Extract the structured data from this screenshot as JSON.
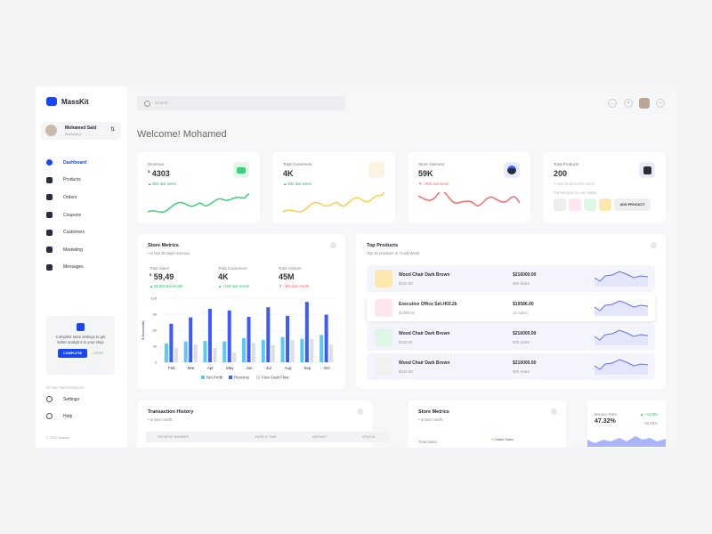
{
  "app": {
    "name": "MassKit"
  },
  "user": {
    "name": "Mohamed Said",
    "role": "Marketing"
  },
  "sidebar": {
    "items": [
      {
        "label": "Dashboard",
        "active": true
      },
      {
        "label": "Products"
      },
      {
        "label": "Orders"
      },
      {
        "label": "Coupons"
      },
      {
        "label": "Customers"
      },
      {
        "label": "Marketing"
      },
      {
        "label": "Messages"
      }
    ],
    "promo": {
      "text": "Complete store settings to get better analytics to your shop",
      "complete": "COMPLETE",
      "later": "LATER"
    },
    "pref_title": "STORE PREFERENCES",
    "pref_items": [
      {
        "label": "Settings"
      },
      {
        "label": "Help"
      }
    ],
    "copyright": "© 2021 Masskit"
  },
  "header": {
    "search_placeholder": "Search...",
    "welcome": "Welcome! Mohamed"
  },
  "kpis": [
    {
      "label": "Revenue",
      "currency": "$",
      "value": "4303",
      "delta": "$32 last week",
      "trend": "up",
      "color": "#3ecf7a",
      "icon": "wallet-icon"
    },
    {
      "label": "Total Customers",
      "value": "4K",
      "delta": "$32 last week",
      "trend": "up",
      "color": "#f7cf4d",
      "icon": "people-icon"
    },
    {
      "label": "Store Visitores",
      "value": "59K",
      "delta": "+900 last week",
      "trend": "down",
      "color": "#f26a6a",
      "icon": "pie-icon"
    },
    {
      "label": "Total Products",
      "value": "200",
      "note": "7 new product this week",
      "top_label": "TOP PRODUCTS LAST WEEK",
      "add_label": "ADD PRODUCT",
      "icon": "bag-icon"
    }
  ],
  "store_metrics": {
    "title": "Store Metrics",
    "subtitle": "in last 30 days revenue.",
    "metrics": [
      {
        "label": "Total Sales",
        "currency": "$",
        "value": "59,49",
        "delta": "$1459 last month",
        "trend": "up"
      },
      {
        "label": "Total Customers",
        "value": "4K",
        "delta": "+109 last month",
        "trend": "up"
      },
      {
        "label": "Total Visitors",
        "value": "45M",
        "delta": "-399 last month",
        "trend": "down"
      }
    ]
  },
  "chart_data": {
    "type": "bar",
    "categories": [
      "Feb",
      "Mar",
      "Apr",
      "May",
      "Jun",
      "Jul",
      "Aug",
      "Sep",
      "Oct"
    ],
    "ylabel": "$ (thousands)",
    "ylim": [
      0,
      120
    ],
    "yticks": [
      0,
      30,
      60,
      90,
      120
    ],
    "grid": true,
    "legend": "bottom",
    "series": [
      {
        "name": "Net Profit",
        "color": "#5ac8fa",
        "values": [
          35,
          39,
          40,
          39,
          45,
          42,
          47,
          44,
          51
        ]
      },
      {
        "name": "Revenue",
        "color": "#3d5afe",
        "values": [
          72,
          84,
          100,
          97,
          85,
          103,
          87,
          113,
          89
        ]
      },
      {
        "name": "Free Cash Flow",
        "color": "#dcdde6",
        "values": [
          27,
          33,
          27,
          18,
          36,
          32,
          42,
          43,
          33
        ]
      }
    ]
  },
  "top_products": {
    "title": "Top Products",
    "subtitle": "Top 10 products in",
    "period": "Last Week",
    "items": [
      {
        "name": "Wood Chair Dark Brown",
        "price": "$240.00",
        "total": "$216000.00",
        "sales": "900 Sales",
        "bg": "#fde9b0"
      },
      {
        "name": "Executive Office Set.H03.2k",
        "price": "$1399.00",
        "total": "$19586.00",
        "sales": "14 Sales",
        "bg": "#fde6ef"
      },
      {
        "name": "Wood Chair Dark Brown",
        "price": "$240.00",
        "total": "$216000.00",
        "sales": "900 Sales",
        "bg": "#dff7e6"
      },
      {
        "name": "Wood Chair Dark Brown",
        "price": "$240.00",
        "total": "$216000.00",
        "sales": "900 Sales",
        "bg": "#f1f1f1"
      }
    ]
  },
  "transactions": {
    "title": "Transaction History",
    "subtitle": "in last month.",
    "columns": [
      "PAYMENT NUMBER",
      "DATE & TIME",
      "AMOUNT",
      "STATUS"
    ]
  },
  "store_metrics_2": {
    "title": "Store Metrics",
    "subtitle": "in last month.",
    "label": "Total Sales",
    "legend": "Chairs Sales"
  },
  "bounce": {
    "label": "Bounce Rate",
    "value": "47.32%",
    "delta": "+12.8%",
    "sub": "68.88%"
  }
}
